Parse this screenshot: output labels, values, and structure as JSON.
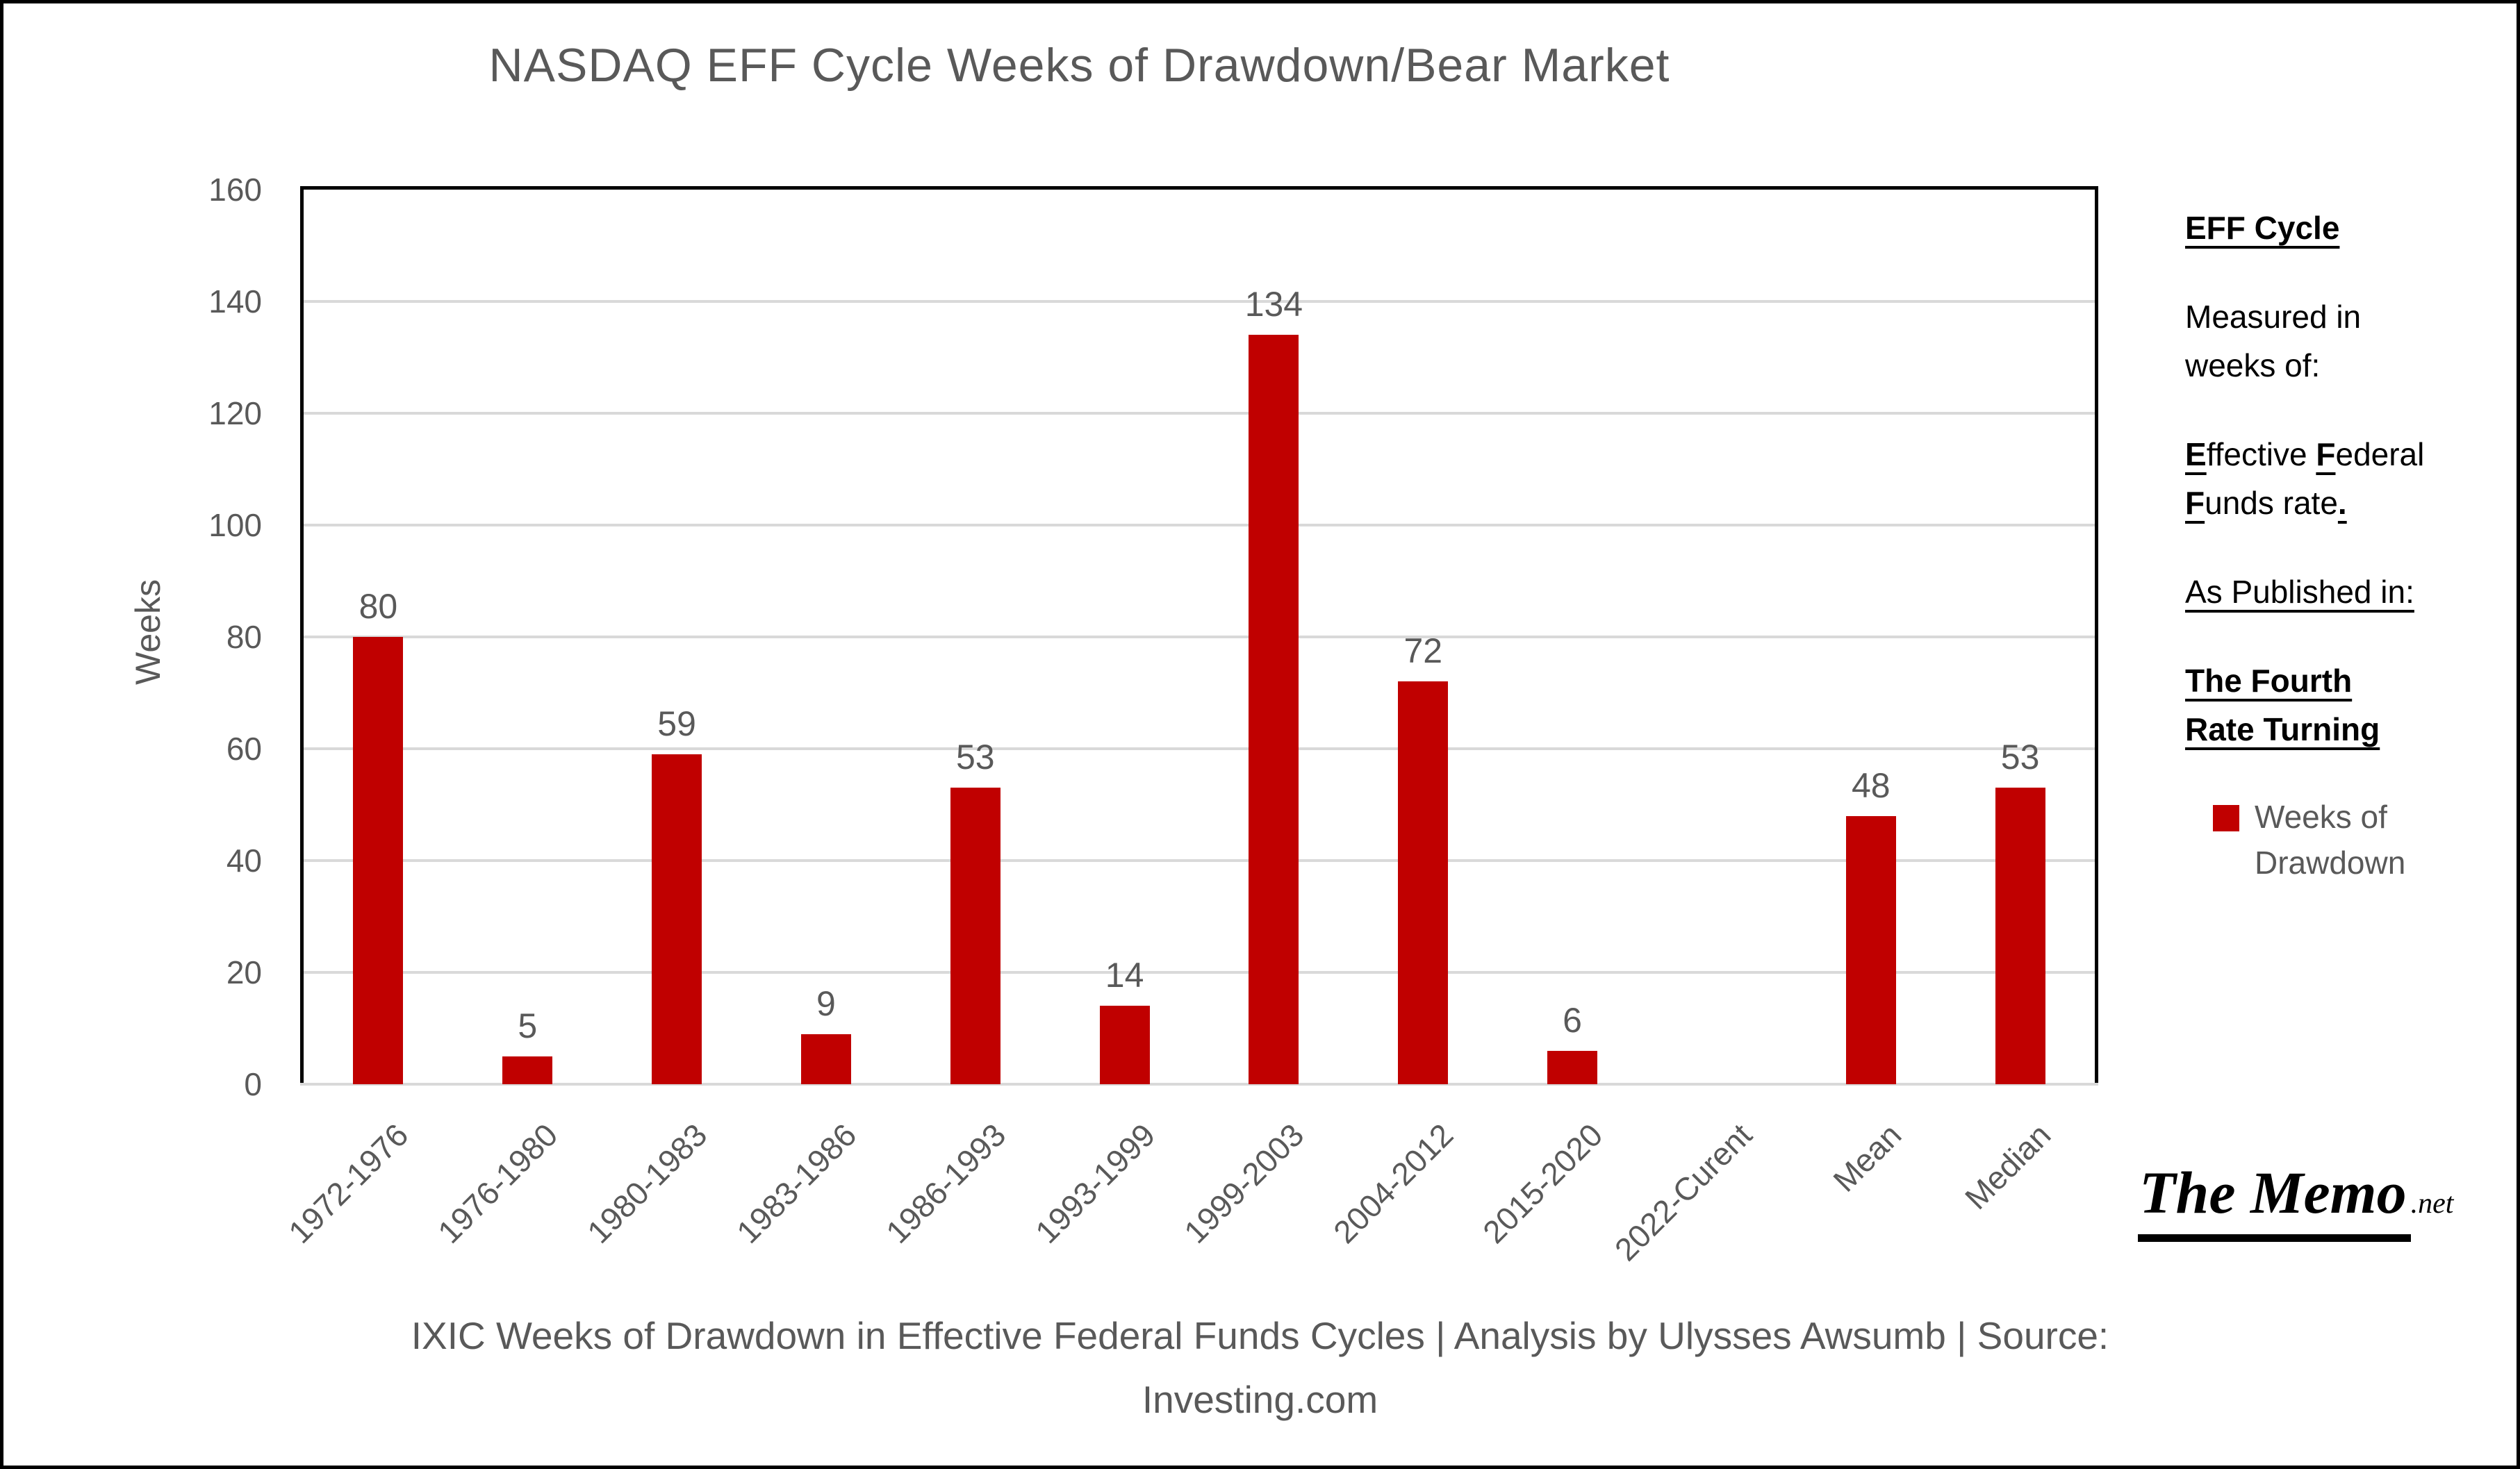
{
  "title": "NASDAQ EFF Cycle Weeks of Drawdown/Bear Market",
  "chart_data": {
    "type": "bar",
    "title": "NASDAQ EFF Cycle Weeks of Drawdown/Bear Market",
    "categories": [
      "1972-1976",
      "1976-1980",
      "1980-1983",
      "1983-1986",
      "1986-1993",
      "1993-1999",
      "1999-2003",
      "2004-2012",
      "2015-2020",
      "2022-Curent",
      "Mean",
      "Median"
    ],
    "values": [
      80,
      5,
      59,
      9,
      53,
      14,
      134,
      72,
      6,
      null,
      48,
      53
    ],
    "series": [
      {
        "name": "Weeks of Drawdown",
        "values": [
          80,
          5,
          59,
          9,
          53,
          14,
          134,
          72,
          6,
          null,
          48,
          53
        ]
      }
    ],
    "xlabel": "",
    "ylabel": "Weeks",
    "ylim": [
      0,
      160
    ],
    "yticks": [
      0,
      20,
      40,
      60,
      80,
      100,
      120,
      140,
      160
    ],
    "grid": true,
    "bar_color": "#c00000",
    "legend_position": "right"
  },
  "legend": {
    "swatch_color": "#c00000",
    "label": "Weeks of Drawdown"
  },
  "side_panel": {
    "paragraphs": [
      [
        {
          "t": "EFF Cycle",
          "b": true,
          "u": true
        }
      ],
      [
        {
          "t": "Measured in weeks of:"
        }
      ],
      [
        {
          "t": "E",
          "b": true,
          "u": true
        },
        {
          "t": "ffective "
        },
        {
          "t": "F",
          "b": true,
          "u": true
        },
        {
          "t": "ederal "
        },
        {
          "t": "F",
          "b": true,
          "u": true
        },
        {
          "t": "unds rate"
        },
        {
          "t": ".",
          "b": true,
          "u": true
        }
      ],
      [
        {
          "t": "As Published in:",
          "u": true
        }
      ],
      [
        {
          "t": "The Fourth Rate Turning",
          "b": true,
          "u": true
        }
      ]
    ]
  },
  "logo": {
    "main": "The Memo",
    "suffix": ".net"
  },
  "caption": {
    "line1": "IXIC Weeks of Drawdown in Effective Federal Funds Cycles | Analysis by Ulysses Awsumb | Source:",
    "line2": "Investing.com"
  },
  "colors": {
    "bar": "#c00000",
    "text_gray": "#595959",
    "gridline": "#d9d9d9",
    "frame": "#000000"
  }
}
